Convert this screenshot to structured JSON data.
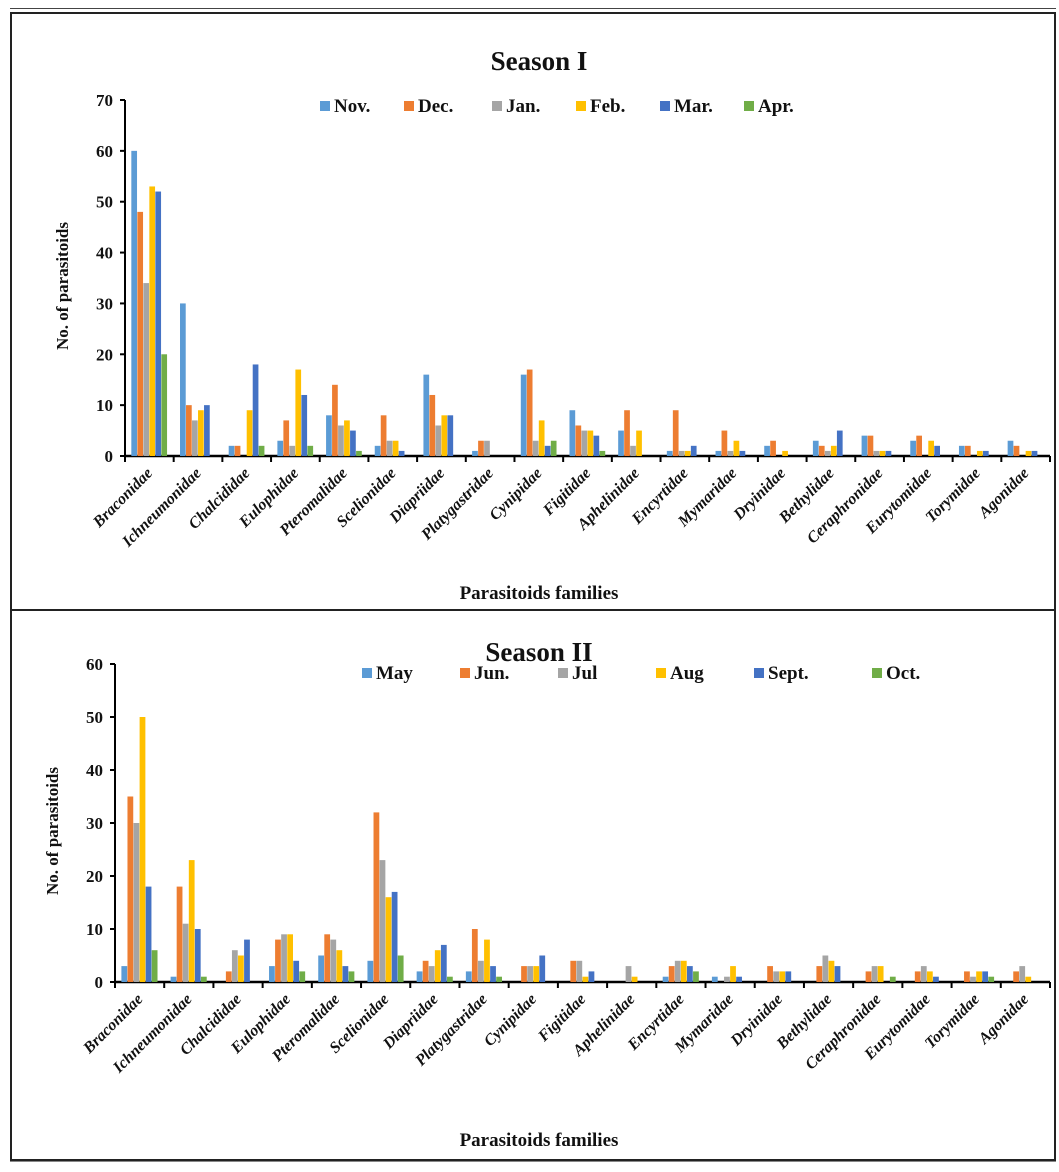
{
  "chart_data": [
    {
      "type": "bar",
      "title": "Season I",
      "xlabel": "Parasitoids families",
      "ylabel": "No. of parasitoids",
      "ylim": [
        0,
        70
      ],
      "yticks": [
        0,
        10,
        20,
        30,
        40,
        50,
        60,
        70
      ],
      "legend_position": "top-center",
      "grid": false,
      "categories": [
        "Braconidae",
        "Ichneumonidae",
        "Chalcididae",
        "Eulophidae",
        "Pteromalidae",
        "Scelionidae",
        "Diapriidae",
        "Platygastridae",
        "Cynipidae",
        "Figitidae",
        "Aphelinidae",
        "Encyrtidae",
        "Mymaridae",
        "Dryinidae",
        "Bethylidae",
        "Ceraphronidae",
        "Eurytomidae",
        "Torymidae",
        "Agonidae"
      ],
      "series": [
        {
          "name": "Nov.",
          "color": "#5B9BD5",
          "values": [
            60,
            30,
            2,
            3,
            8,
            2,
            16,
            1,
            16,
            9,
            5,
            1,
            1,
            2,
            3,
            4,
            3,
            2,
            3
          ]
        },
        {
          "name": "Dec.",
          "color": "#ED7D31",
          "values": [
            48,
            10,
            2,
            7,
            14,
            8,
            12,
            3,
            17,
            6,
            9,
            9,
            5,
            3,
            2,
            4,
            4,
            2,
            2
          ]
        },
        {
          "name": "Jan.",
          "color": "#A5A5A5",
          "values": [
            34,
            7,
            0,
            2,
            6,
            3,
            6,
            3,
            3,
            5,
            2,
            1,
            1,
            0,
            1,
            1,
            0,
            0,
            0
          ]
        },
        {
          "name": "Feb.",
          "color": "#FFC000",
          "values": [
            53,
            9,
            9,
            17,
            7,
            3,
            8,
            0,
            7,
            5,
            5,
            1,
            3,
            1,
            2,
            1,
            3,
            1,
            1
          ]
        },
        {
          "name": "Mar.",
          "color": "#4472C4",
          "values": [
            52,
            10,
            18,
            12,
            5,
            1,
            8,
            0,
            2,
            4,
            0,
            2,
            1,
            0,
            5,
            1,
            2,
            1,
            1
          ]
        },
        {
          "name": "Apr.",
          "color": "#70AD47",
          "values": [
            20,
            0,
            2,
            2,
            1,
            0,
            0,
            0,
            3,
            1,
            0,
            0,
            0,
            0,
            0,
            0,
            0,
            0,
            0
          ]
        }
      ]
    },
    {
      "type": "bar",
      "title": "Season II",
      "xlabel": "Parasitoids families",
      "ylabel": "No. of parasitoids",
      "ylim": [
        0,
        60
      ],
      "yticks": [
        0,
        10,
        20,
        30,
        40,
        50,
        60
      ],
      "legend_position": "top-center",
      "grid": false,
      "categories": [
        "Braconidae",
        "Ichneumonidae",
        "Chalcididae",
        "Eulophidae",
        "Pteromalidae",
        "Scelionidae",
        "Diapriidae",
        "Platygastridae",
        "Cynipidae",
        "Figitidae",
        "Aphelinidae",
        "Encyrtidae",
        "Mymaridae",
        "Dryinidae",
        "Bethylidae",
        "Ceraphronidae",
        "Eurytomidae",
        "Torymidae",
        "Agonidae"
      ],
      "series": [
        {
          "name": "May",
          "color": "#5B9BD5",
          "values": [
            3,
            1,
            0,
            3,
            5,
            4,
            2,
            2,
            0,
            0,
            0,
            1,
            1,
            0,
            0,
            0,
            0,
            0,
            0
          ]
        },
        {
          "name": "Jun.",
          "color": "#ED7D31",
          "values": [
            35,
            18,
            2,
            8,
            9,
            32,
            4,
            10,
            3,
            4,
            0,
            3,
            0,
            3,
            3,
            2,
            2,
            2,
            2
          ]
        },
        {
          "name": "Jul",
          "color": "#A5A5A5",
          "values": [
            30,
            11,
            6,
            9,
            8,
            23,
            3,
            4,
            3,
            4,
            3,
            4,
            1,
            2,
            5,
            3,
            3,
            1,
            3
          ]
        },
        {
          "name": "Aug",
          "color": "#FFC000",
          "values": [
            50,
            23,
            5,
            9,
            6,
            16,
            6,
            8,
            3,
            1,
            1,
            4,
            3,
            2,
            4,
            3,
            2,
            2,
            1
          ]
        },
        {
          "name": "Sept.",
          "color": "#4472C4",
          "values": [
            18,
            10,
            8,
            4,
            3,
            17,
            7,
            3,
            5,
            2,
            0,
            3,
            1,
            2,
            3,
            0,
            1,
            2,
            0
          ]
        },
        {
          "name": "Oct.",
          "color": "#70AD47",
          "values": [
            6,
            1,
            0,
            2,
            2,
            5,
            1,
            1,
            0,
            0,
            0,
            2,
            0,
            0,
            0,
            1,
            0,
            1,
            0
          ]
        }
      ]
    }
  ]
}
